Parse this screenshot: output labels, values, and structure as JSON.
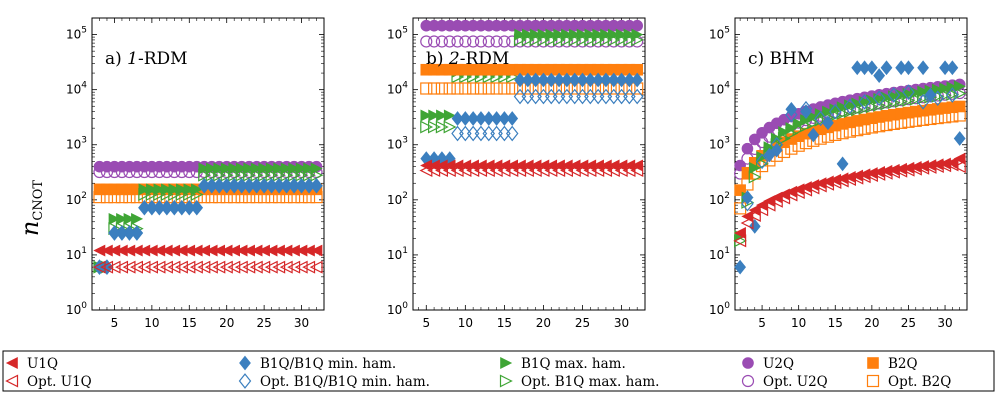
{
  "figure": {
    "ylabel_main": "n",
    "ylabel_sub": "CNOT",
    "colors": {
      "U1Q": "#d62728",
      "B1Q_min": "#3b7fbf",
      "B1Q_max": "#3fa535",
      "U2Q": "#9a4cb3",
      "B2Q": "#ff7f0e"
    }
  },
  "legend": [
    {
      "label": "U1Q",
      "series": "U1Q",
      "filled": true
    },
    {
      "label": "B1Q/B1Q min. ham.",
      "series": "B1Q_min",
      "filled": true
    },
    {
      "label": "B1Q max. ham.",
      "series": "B1Q_max",
      "filled": true
    },
    {
      "label": "U2Q",
      "series": "U2Q",
      "filled": true
    },
    {
      "label": "B2Q",
      "series": "B2Q",
      "filled": true
    },
    {
      "label": "Opt. U1Q",
      "series": "U1Q",
      "filled": false
    },
    {
      "label": "Opt. B1Q/B1Q min. ham.",
      "series": "B1Q_min",
      "filled": false
    },
    {
      "label": "Opt. B1Q max. ham.",
      "series": "B1Q_max",
      "filled": false
    },
    {
      "label": "Opt. U2Q",
      "series": "U2Q",
      "filled": false
    },
    {
      "label": "Opt. B2Q",
      "series": "B2Q",
      "filled": false
    }
  ],
  "chart_data": [
    {
      "type": "scatter",
      "title": "a) 1-RDM",
      "title_italic_part": "1",
      "xlim": [
        2,
        33
      ],
      "ylim": [
        1,
        200000
      ],
      "yscale": "log",
      "xticks": [
        5,
        10,
        15,
        20,
        25,
        30
      ],
      "yticks": [
        "10^0",
        "10^1",
        "10^2",
        "10^3",
        "10^4",
        "10^5"
      ],
      "series": [
        {
          "name": "U2Q",
          "marker": "circle",
          "filled": true,
          "steps": [
            [
              3,
              32,
              400
            ]
          ]
        },
        {
          "name": "Opt. U2Q",
          "marker": "circle",
          "filled": false,
          "steps": [
            [
              3,
              32,
              320
            ]
          ]
        },
        {
          "name": "B2Q",
          "marker": "square",
          "filled": true,
          "steps": [
            [
              3,
              32,
              155
            ]
          ]
        },
        {
          "name": "Opt. B2Q",
          "marker": "square",
          "filled": false,
          "steps": [
            [
              3,
              32,
              112
            ]
          ]
        },
        {
          "name": "B1Q max. ham.",
          "marker": "triangle-right",
          "filled": true,
          "steps": [
            [
              3,
              4,
              6
            ],
            [
              5,
              8,
              45
            ],
            [
              9,
              16,
              155
            ],
            [
              17,
              32,
              370
            ]
          ]
        },
        {
          "name": "Opt. B1Q max. ham.",
          "marker": "triangle-right",
          "filled": false,
          "steps": [
            [
              3,
              4,
              6
            ],
            [
              5,
              8,
              30
            ],
            [
              9,
              16,
              125
            ],
            [
              17,
              32,
              280
            ]
          ]
        },
        {
          "name": "B1Q/B1Q min. ham.",
          "marker": "diamond",
          "filled": true,
          "steps": [
            [
              3,
              4,
              6
            ],
            [
              5,
              8,
              25
            ],
            [
              9,
              16,
              72
            ],
            [
              17,
              32,
              180
            ]
          ]
        },
        {
          "name": "Opt. B1Q/B1Q min. ham.",
          "marker": "diamond",
          "filled": false,
          "steps": [
            [
              3,
              4,
              6
            ],
            [
              5,
              8,
              25
            ],
            [
              9,
              16,
              72
            ],
            [
              17,
              32,
              180
            ]
          ]
        },
        {
          "name": "U1Q",
          "marker": "triangle-left",
          "filled": true,
          "steps": [
            [
              3,
              32,
              12
            ]
          ]
        },
        {
          "name": "Opt. U1Q",
          "marker": "triangle-left",
          "filled": false,
          "steps": [
            [
              3,
              32,
              6
            ]
          ]
        }
      ]
    },
    {
      "type": "scatter",
      "title": "b) 2-RDM",
      "title_italic_part": "2",
      "xlim": [
        3.3,
        33
      ],
      "ylim": [
        1,
        200000
      ],
      "yscale": "log",
      "xticks": [
        5,
        10,
        15,
        20,
        25,
        30
      ],
      "yticks": [
        "10^0",
        "10^1",
        "10^2",
        "10^3",
        "10^4",
        "10^5"
      ],
      "series": [
        {
          "name": "U2Q",
          "marker": "circle",
          "filled": true,
          "steps": [
            [
              5,
              32,
              145000
            ]
          ]
        },
        {
          "name": "Opt. U2Q",
          "marker": "circle",
          "filled": false,
          "steps": [
            [
              5,
              32,
              75000
            ]
          ]
        },
        {
          "name": "B1Q max. ham.",
          "marker": "triangle-right",
          "filled": true,
          "steps": [
            [
              5,
              8,
              3400
            ],
            [
              9,
              16,
              21000
            ],
            [
              17,
              32,
              100000
            ]
          ]
        },
        {
          "name": "Opt. B1Q max. ham.",
          "marker": "triangle-right",
          "filled": false,
          "steps": [
            [
              5,
              8,
              2100
            ],
            [
              9,
              16,
              17000
            ],
            [
              17,
              32,
              80000
            ]
          ]
        },
        {
          "name": "B2Q",
          "marker": "square",
          "filled": true,
          "steps": [
            [
              5,
              32,
              23000
            ]
          ]
        },
        {
          "name": "Opt. B2Q",
          "marker": "square",
          "filled": false,
          "steps": [
            [
              5,
              32,
              10500
            ]
          ]
        },
        {
          "name": "B1Q/B1Q min. ham.",
          "marker": "diamond",
          "filled": true,
          "steps": [
            [
              5,
              8,
              560
            ],
            [
              9,
              16,
              3000
            ],
            [
              17,
              32,
              15000
            ]
          ]
        },
        {
          "name": "Opt. B1Q/B1Q min. ham.",
          "marker": "diamond",
          "filled": false,
          "steps": [
            [
              9,
              16,
              1600
            ],
            [
              17,
              32,
              7500
            ]
          ]
        },
        {
          "name": "U1Q",
          "marker": "triangle-left",
          "filled": true,
          "steps": [
            [
              5,
              32,
              420
            ]
          ]
        },
        {
          "name": "Opt. U1Q",
          "marker": "triangle-left",
          "filled": false,
          "steps": [
            [
              5,
              32,
              340
            ]
          ]
        }
      ]
    },
    {
      "type": "scatter",
      "title": "c) BHM",
      "title_italic_part": "",
      "xlim": [
        1.3,
        33
      ],
      "ylim": [
        1,
        200000
      ],
      "yscale": "log",
      "xticks": [
        5,
        10,
        15,
        20,
        25,
        30
      ],
      "yticks": [
        "10^0",
        "10^1",
        "10^2",
        "10^3",
        "10^4",
        "10^5"
      ],
      "series": [
        {
          "name": "U2Q",
          "marker": "circle",
          "filled": true,
          "x": [
            2,
            3,
            4,
            5,
            6,
            7,
            8,
            9,
            10,
            11,
            12,
            13,
            14,
            15,
            16,
            17,
            18,
            19,
            20,
            21,
            22,
            23,
            24,
            25,
            26,
            27,
            28,
            29,
            30,
            31,
            32
          ],
          "y": [
            420,
            850,
            1250,
            1650,
            2050,
            2450,
            2850,
            3250,
            3650,
            4050,
            4450,
            4850,
            5250,
            5650,
            6050,
            6450,
            6850,
            7250,
            7650,
            8050,
            8450,
            8850,
            9250,
            9650,
            10050,
            10450,
            10850,
            11250,
            11650,
            12050,
            12450
          ]
        },
        {
          "name": "Opt. U2Q",
          "marker": "circle",
          "filled": false,
          "x": [
            2,
            3,
            4,
            5,
            6,
            7,
            8,
            9,
            10,
            11,
            12,
            13,
            14,
            15,
            16,
            17,
            18,
            19,
            20,
            21,
            22,
            23,
            24,
            25,
            26,
            27,
            28,
            29,
            30,
            31,
            32
          ],
          "y": [
            300,
            560,
            840,
            1120,
            1400,
            1680,
            1960,
            2240,
            2520,
            2800,
            3080,
            3360,
            3640,
            3920,
            4200,
            4480,
            4760,
            5040,
            5320,
            5600,
            5880,
            6160,
            6440,
            6720,
            7000,
            7280,
            7560,
            7840,
            8120,
            8400,
            8680
          ]
        },
        {
          "name": "B2Q",
          "marker": "square",
          "filled": true,
          "x": [
            2,
            3,
            4,
            5,
            6,
            7,
            8,
            9,
            10,
            11,
            12,
            13,
            14,
            15,
            16,
            17,
            18,
            19,
            20,
            21,
            22,
            23,
            24,
            25,
            26,
            27,
            28,
            29,
            30,
            31,
            32
          ],
          "y": [
            150,
            310,
            470,
            630,
            790,
            950,
            1110,
            1270,
            1430,
            1590,
            1750,
            1910,
            2070,
            2230,
            2390,
            2550,
            2710,
            2870,
            3030,
            3190,
            3350,
            3510,
            3670,
            3830,
            3990,
            4150,
            4310,
            4470,
            4630,
            4790,
            4950
          ]
        },
        {
          "name": "Opt. B2Q",
          "marker": "square",
          "filled": false,
          "x": [
            2,
            3,
            4,
            5,
            6,
            7,
            8,
            9,
            10,
            11,
            12,
            13,
            14,
            15,
            16,
            17,
            18,
            19,
            20,
            21,
            22,
            23,
            24,
            25,
            26,
            27,
            28,
            29,
            30,
            31,
            32
          ],
          "y": [
            70,
            190,
            300,
            410,
            520,
            630,
            740,
            850,
            960,
            1070,
            1180,
            1290,
            1400,
            1510,
            1620,
            1730,
            1840,
            1950,
            2060,
            2170,
            2280,
            2390,
            2500,
            2610,
            2720,
            2830,
            2940,
            3050,
            3160,
            3270,
            3400
          ]
        },
        {
          "name": "B1Q max. ham.",
          "marker": "triangle-right",
          "filled": true,
          "x": [
            2,
            3,
            4,
            5,
            6,
            7,
            8,
            9,
            10,
            11,
            12,
            13,
            14,
            15,
            16,
            17,
            18,
            19,
            20,
            21,
            22,
            23,
            24,
            25,
            26,
            27,
            28,
            29,
            30,
            31,
            32
          ],
          "y": [
            22,
            110,
            380,
            600,
            900,
            1300,
            1700,
            2000,
            2400,
            2800,
            3200,
            3600,
            4000,
            4400,
            4800,
            5200,
            5600,
            6000,
            6400,
            6800,
            7200,
            7600,
            8000,
            8400,
            8800,
            9200,
            9600,
            10000,
            10500,
            11000,
            11500
          ]
        },
        {
          "name": "Opt. B1Q max. ham.",
          "marker": "triangle-right",
          "filled": false,
          "x": [
            2,
            3,
            4,
            5,
            6,
            7,
            8,
            9,
            10,
            11,
            12,
            13,
            14,
            15,
            16,
            17,
            18,
            19,
            20,
            21,
            22,
            23,
            24,
            25,
            26,
            27,
            28,
            29,
            30,
            31,
            32
          ],
          "y": [
            18,
            90,
            260,
            450,
            700,
            1000,
            1300,
            1600,
            1900,
            2200,
            2500,
            2800,
            3100,
            3400,
            3700,
            4000,
            4300,
            4600,
            4900,
            5200,
            5500,
            5800,
            6100,
            6400,
            6700,
            7000,
            7300,
            7600,
            7900,
            8200,
            8500
          ]
        },
        {
          "name": "B1Q/B1Q min. ham.",
          "marker": "diamond",
          "filled": true,
          "x": [
            2,
            3,
            4,
            6,
            7,
            9,
            11,
            12,
            14,
            16,
            18,
            19,
            20,
            21,
            22,
            24,
            25,
            27,
            28,
            30,
            31,
            32
          ],
          "y": [
            6,
            110,
            33,
            650,
            800,
            4400,
            4000,
            1500,
            2500,
            450,
            25000,
            25000,
            25000,
            18000,
            25000,
            25000,
            25000,
            25000,
            8000,
            25000,
            25000,
            1300
          ]
        },
        {
          "name": "Opt. B1Q/B1Q min. ham.",
          "marker": "diamond",
          "filled": false,
          "x": [
            3,
            5,
            7,
            9,
            11,
            13,
            15,
            17,
            19,
            21,
            23,
            25,
            27,
            29,
            31
          ],
          "y": [
            85,
            500,
            1000,
            3500,
            4500,
            3000,
            4000,
            5000,
            6000,
            7000,
            8000,
            9000,
            6000,
            7000,
            8000
          ]
        },
        {
          "name": "U1Q",
          "marker": "triangle-left",
          "filled": true,
          "x": [
            2,
            3,
            4,
            5,
            6,
            7,
            8,
            9,
            10,
            11,
            12,
            13,
            14,
            15,
            16,
            17,
            18,
            19,
            20,
            21,
            22,
            23,
            24,
            25,
            26,
            27,
            28,
            29,
            30,
            31,
            32
          ],
          "y": [
            25,
            50,
            65,
            80,
            95,
            110,
            125,
            140,
            155,
            170,
            185,
            200,
            215,
            230,
            245,
            260,
            275,
            290,
            305,
            320,
            335,
            350,
            365,
            380,
            395,
            410,
            425,
            440,
            455,
            470,
            560
          ]
        },
        {
          "name": "Opt. U1Q",
          "marker": "triangle-left",
          "filled": false,
          "x": [
            2,
            3,
            4,
            5,
            6,
            7,
            8,
            9,
            10,
            11,
            12,
            13,
            14,
            15,
            16,
            17,
            18,
            19,
            20,
            21,
            22,
            23,
            24,
            25,
            26,
            27,
            28,
            29,
            30,
            31,
            32
          ],
          "y": [
            18,
            38,
            52,
            66,
            80,
            94,
            108,
            122,
            136,
            150,
            164,
            178,
            192,
            206,
            220,
            234,
            248,
            262,
            276,
            290,
            304,
            318,
            332,
            346,
            360,
            374,
            388,
            402,
            416,
            430,
            400
          ]
        }
      ]
    }
  ]
}
